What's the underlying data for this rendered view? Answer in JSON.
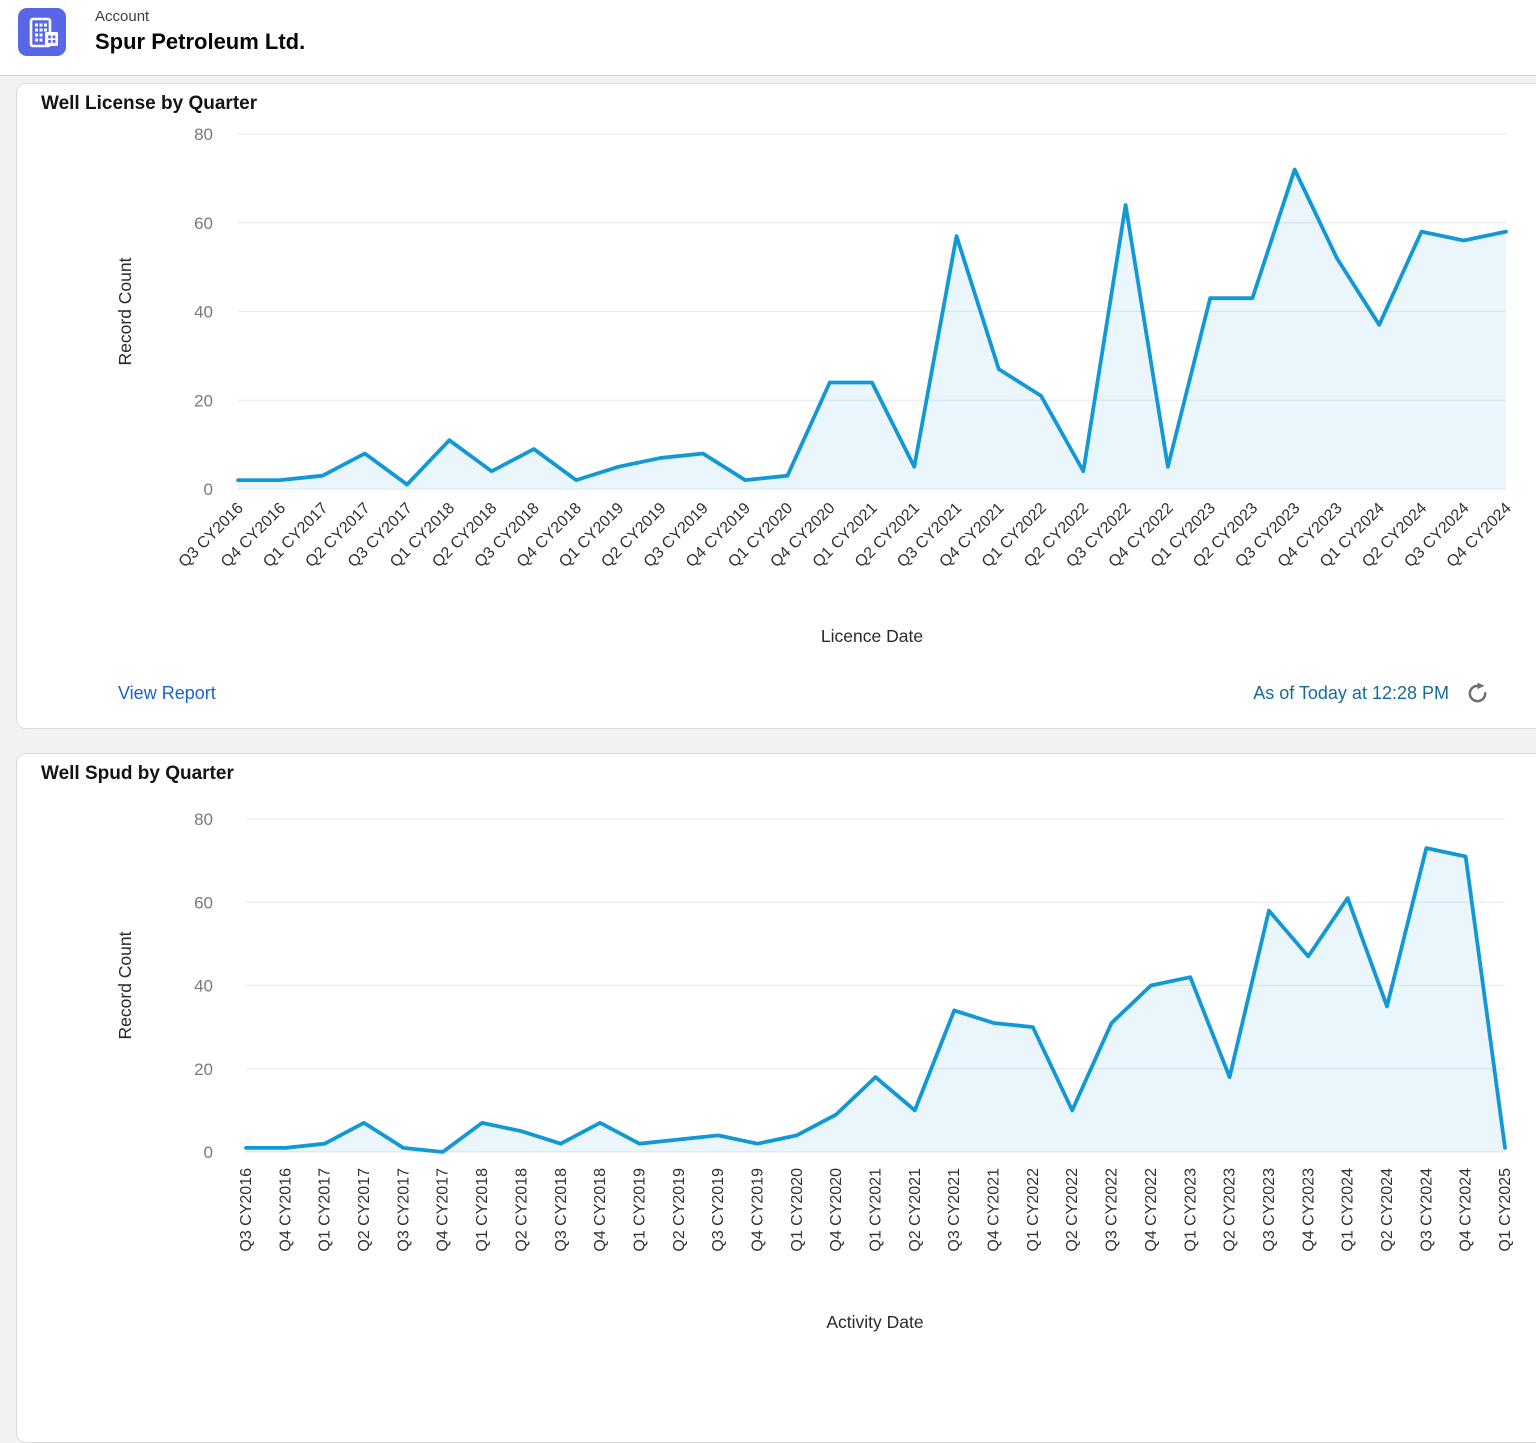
{
  "header": {
    "app_label": "Account",
    "title": "Spur Petroleum Ltd.",
    "icon": "building-icon",
    "icon_color": "#5867E8"
  },
  "cards": [
    {
      "title": "Well License by Quarter",
      "footer": {
        "view_report_label": "View Report",
        "as_of_text": "As of Today at 12:28 PM",
        "refresh_icon": "refresh-icon"
      }
    },
    {
      "title": "Well Spud by Quarter"
    }
  ],
  "chart_data": [
    {
      "type": "area",
      "title": "Well License by Quarter",
      "xlabel": "Licence Date",
      "ylabel": "Record Count",
      "ylim": [
        0,
        80
      ],
      "yticks": [
        0,
        20,
        40,
        60,
        80
      ],
      "grid": true,
      "legend": false,
      "line_color": "#1398d6",
      "fill_color": "rgba(19,152,214,0.09)",
      "categories": [
        "Q3 CY2016",
        "Q4 CY2016",
        "Q1 CY2017",
        "Q2 CY2017",
        "Q3 CY2017",
        "Q1 CY2018",
        "Q2 CY2018",
        "Q3 CY2018",
        "Q4 CY2018",
        "Q1 CY2019",
        "Q2 CY2019",
        "Q3 CY2019",
        "Q4 CY2019",
        "Q1 CY2020",
        "Q4 CY2020",
        "Q1 CY2021",
        "Q2 CY2021",
        "Q3 CY2021",
        "Q4 CY2021",
        "Q1 CY2022",
        "Q2 CY2022",
        "Q3 CY2022",
        "Q4 CY2022",
        "Q1 CY2023",
        "Q2 CY2023",
        "Q3 CY2023",
        "Q4 CY2023",
        "Q1 CY2024",
        "Q2 CY2024",
        "Q3 CY2024",
        "Q4 CY2024"
      ],
      "values": [
        2,
        2,
        3,
        8,
        1,
        11,
        4,
        9,
        2,
        5,
        7,
        8,
        2,
        3,
        24,
        24,
        5,
        57,
        27,
        21,
        4,
        64,
        5,
        43,
        43,
        72,
        52,
        37,
        58,
        56,
        58
      ]
    },
    {
      "type": "area",
      "title": "Well Spud by Quarter",
      "xlabel": "Activity Date",
      "ylabel": "Record Count",
      "ylim": [
        0,
        80
      ],
      "yticks": [
        0,
        20,
        40,
        60,
        80
      ],
      "grid": true,
      "legend": false,
      "line_color": "#1398d6",
      "fill_color": "rgba(19,152,214,0.09)",
      "categories": [
        "Q3 CY2016",
        "Q4 CY2016",
        "Q1 CY2017",
        "Q2 CY2017",
        "Q3 CY2017",
        "Q4 CY2017",
        "Q1 CY2018",
        "Q2 CY2018",
        "Q3 CY2018",
        "Q4 CY2018",
        "Q1 CY2019",
        "Q2 CY2019",
        "Q3 CY2019",
        "Q4 CY2019",
        "Q1 CY2020",
        "Q4 CY2020",
        "Q1 CY2021",
        "Q2 CY2021",
        "Q3 CY2021",
        "Q4 CY2021",
        "Q1 CY2022",
        "Q2 CY2022",
        "Q3 CY2022",
        "Q4 CY2022",
        "Q1 CY2023",
        "Q2 CY2023",
        "Q3 CY2023",
        "Q4 CY2023",
        "Q1 CY2024",
        "Q2 CY2024",
        "Q3 CY2024",
        "Q4 CY2024",
        "Q1 CY2025"
      ],
      "values": [
        1,
        1,
        2,
        7,
        1,
        0,
        7,
        5,
        2,
        7,
        2,
        3,
        4,
        2,
        4,
        9,
        18,
        10,
        34,
        31,
        30,
        10,
        31,
        40,
        42,
        18,
        58,
        47,
        61,
        35,
        73,
        71,
        1
      ]
    }
  ],
  "chart_style": {
    "grid_color": "#e7edf3",
    "y_tick_color": "#7a7a78",
    "x_label_color": "#33312f",
    "axis_title_color": "#2b2a28"
  }
}
